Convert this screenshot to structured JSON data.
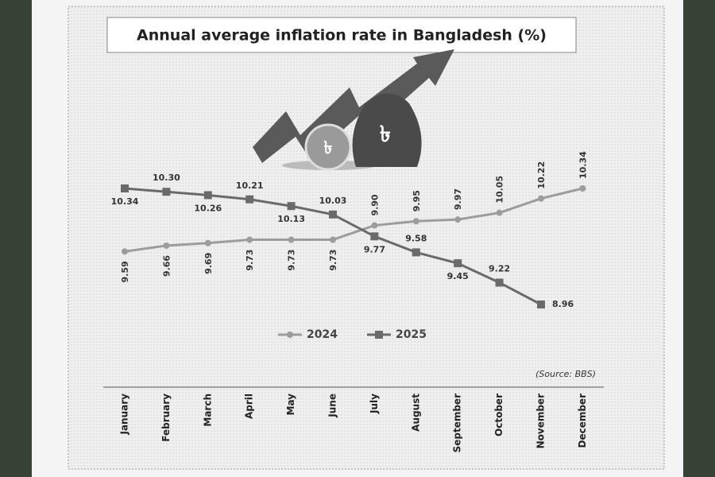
{
  "chart_data": {
    "type": "line",
    "title": "Annual average inflation rate in Bangladesh (%)",
    "source": "(Source: BBS)",
    "categories": [
      "January",
      "February",
      "March",
      "April",
      "May",
      "June",
      "July",
      "August",
      "September",
      "October",
      "November",
      "December"
    ],
    "series": [
      {
        "name": "2024",
        "color": "#9c9c9c",
        "marker": "circle",
        "values": [
          9.59,
          9.66,
          9.69,
          9.73,
          9.73,
          9.73,
          9.9,
          9.95,
          9.97,
          10.05,
          10.22,
          10.34
        ],
        "value_labels": [
          "9.59",
          "9.66",
          "9.69",
          "9.73",
          "9.73",
          "9.73",
          "9.90",
          "9.95",
          "9.97",
          "10.05",
          "10.22",
          "10.34"
        ]
      },
      {
        "name": "2025",
        "color": "#6a6a6a",
        "marker": "square",
        "values": [
          10.34,
          10.3,
          10.26,
          10.21,
          10.13,
          10.03,
          9.77,
          9.58,
          9.45,
          9.22,
          8.96,
          null
        ],
        "value_labels": [
          "10.34",
          "10.30",
          "10.26",
          "10.21",
          "10.13",
          "10.03",
          "9.77",
          "9.58",
          "9.45",
          "9.22",
          "8.96",
          null
        ]
      }
    ]
  }
}
